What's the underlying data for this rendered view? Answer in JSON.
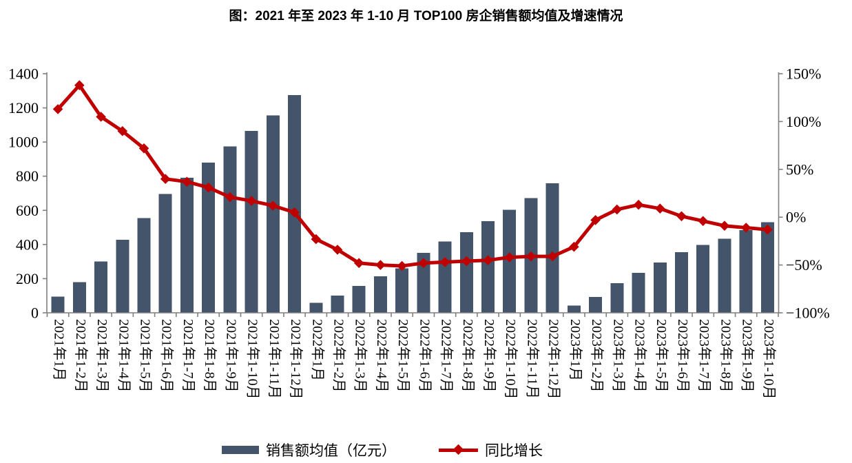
{
  "title": "图：2021 年至 2023 年 1-10 月 TOP100 房企销售额均值及增速情况",
  "colors": {
    "bar": "#44546A",
    "line": "#C00000",
    "axis": "#7F7F7F",
    "text": "#000000",
    "background": "#FFFFFF"
  },
  "legend": {
    "bar_label": "销售额均值（亿元）",
    "line_label": "同比增长"
  },
  "chart_data": {
    "type": "bar",
    "subtype": "bar+line dual-axis",
    "title": "图：2021 年至 2023 年 1-10 月 TOP100 房企销售额均值及增速情况",
    "grid": false,
    "legend_position": "bottom",
    "categories": [
      "2021年1月",
      "2021年1-2月",
      "2021年1-3月",
      "2021年1-4月",
      "2021年1-5月",
      "2021年1-6月",
      "2021年1-7月",
      "2021年1-8月",
      "2021年1-9月",
      "2021年1-10月",
      "2021年1-11月",
      "2021年1-12月",
      "2022年1月",
      "2022年1-2月",
      "2022年1-3月",
      "2022年1-4月",
      "2022年1-5月",
      "2022年1-6月",
      "2022年1-7月",
      "2022年1-8月",
      "2022年1-9月",
      "2022年1-10月",
      "2022年1-11月",
      "2022年1-12月",
      "2023年1月",
      "2023年1-2月",
      "2023年1-3月",
      "2023年1-4月",
      "2023年1-5月",
      "2023年1-6月",
      "2023年1-7月",
      "2023年1-8月",
      "2023年1-9月",
      "2023年1-10月"
    ],
    "series": [
      {
        "name": "销售额均值（亿元）",
        "type": "bar",
        "axis": "left",
        "values": [
          95,
          180,
          300,
          427,
          555,
          695,
          790,
          880,
          975,
          1065,
          1155,
          1275,
          58,
          100,
          157,
          214,
          261,
          352,
          418,
          473,
          537,
          604,
          671,
          759,
          42,
          93,
          174,
          234,
          295,
          355,
          397,
          433,
          485,
          530
        ]
      },
      {
        "name": "同比增长",
        "type": "line",
        "axis": "right",
        "unit": "%",
        "values": [
          113,
          138,
          105,
          90,
          72,
          40,
          37,
          31,
          21,
          17,
          12,
          5,
          -23,
          -34,
          -48,
          -50,
          -51,
          -48,
          -47,
          -46,
          -45,
          -42,
          -41,
          -41,
          -31,
          -3,
          8,
          13,
          9,
          1,
          -4,
          -9,
          -11,
          -13
        ]
      }
    ],
    "left_axis": {
      "min": 0,
      "max": 1400,
      "step": 200,
      "tick_labels": [
        "0",
        "200",
        "400",
        "600",
        "800",
        "1000",
        "1200",
        "1400"
      ]
    },
    "right_axis": {
      "min": -100,
      "max": 150,
      "step": 50,
      "tick_labels": [
        "−100%",
        "−50%",
        "0%",
        "50%",
        "100%",
        "150%"
      ]
    }
  }
}
